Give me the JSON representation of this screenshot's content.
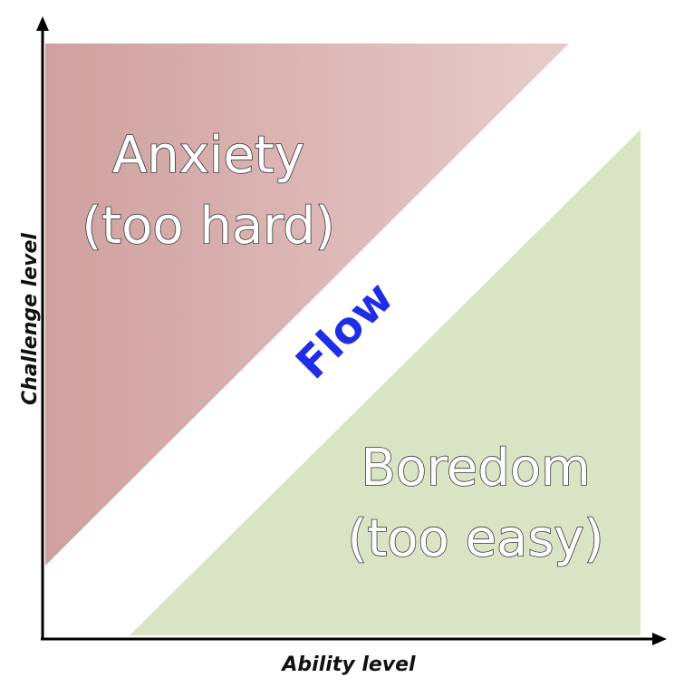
{
  "diagram": {
    "anxiety": {
      "line1": "Anxiety",
      "line2": "(too hard)",
      "color": "#d4a7a6"
    },
    "flow": {
      "label": "Flow",
      "color": "#1f2ee6"
    },
    "boredom": {
      "line1": "Boredom",
      "line2": "(too easy)",
      "color": "#d9e4c4"
    },
    "axes": {
      "x_label": "Ability level",
      "y_label": "Challenge level"
    }
  }
}
